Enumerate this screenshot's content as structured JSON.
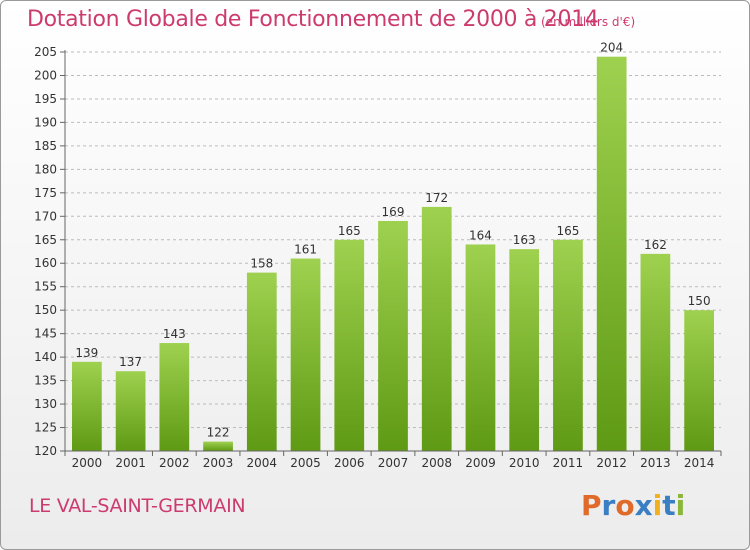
{
  "title": "Dotation Globale de Fonctionnement de 2000 à 2014",
  "units": "(en milliers d'€)",
  "place_name": "LE VAL-SAINT-GERMAIN",
  "logo": {
    "text": "Proxiti",
    "colors": [
      "#e06a2a",
      "#3a7fc4",
      "#e06a2a",
      "#3a7fc4",
      "#f0b020",
      "#3a7fc4",
      "#8ab63a"
    ]
  },
  "colors": {
    "accent": "#cc3b6e",
    "bar_top": "#9ed14f",
    "bar_bottom": "#5f9a14",
    "grid": "#bcbcbc"
  },
  "chart_data": {
    "type": "bar",
    "title": "Dotation Globale de Fonctionnement de 2000 à 2014",
    "subtitle": "(en milliers d'€)",
    "xlabel": "",
    "ylabel": "",
    "categories": [
      "2000",
      "2001",
      "2002",
      "2003",
      "2004",
      "2005",
      "2006",
      "2007",
      "2008",
      "2009",
      "2010",
      "2011",
      "2012",
      "2013",
      "2014"
    ],
    "values": [
      139,
      137,
      143,
      122,
      158,
      161,
      165,
      169,
      172,
      164,
      163,
      165,
      204,
      162,
      150
    ],
    "ylim": [
      120,
      205
    ],
    "yticks": [
      120,
      125,
      130,
      135,
      140,
      145,
      150,
      155,
      160,
      165,
      170,
      175,
      180,
      185,
      190,
      195,
      200,
      205
    ],
    "grid": true,
    "legend": "none"
  }
}
